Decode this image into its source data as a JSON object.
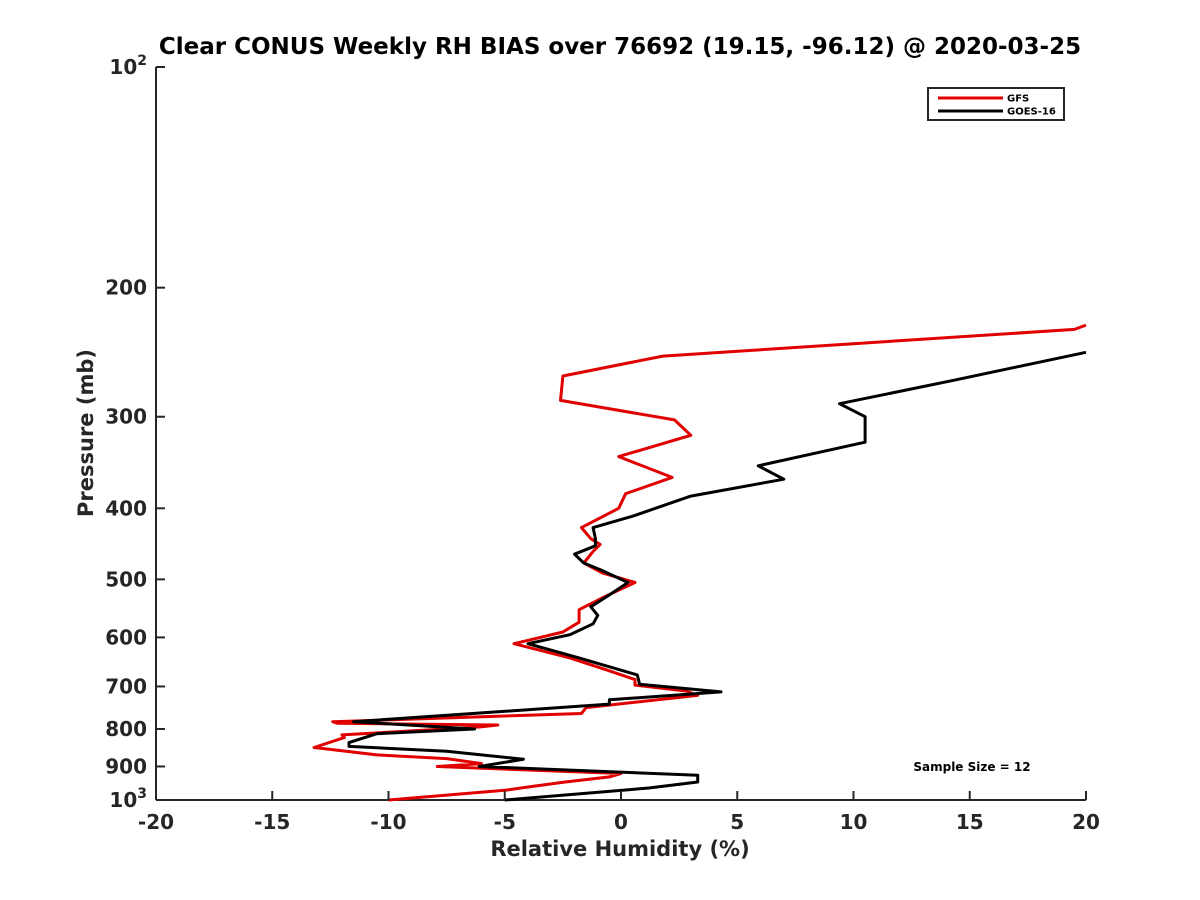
{
  "chart_data": {
    "type": "line",
    "title": "Clear CONUS Weekly RH BIAS over 76692 (19.15, -96.12) @ 2020-03-25",
    "xlabel": "Relative Humidity (%)",
    "ylabel": "Pressure (mb)",
    "xlim": [
      -20,
      20
    ],
    "ylim": [
      100,
      1000
    ],
    "yscale": "log",
    "yreversed": true,
    "grid": false,
    "legend_position": "top-right",
    "x_ticks": [
      -20,
      -15,
      -10,
      -5,
      0,
      5,
      10,
      15,
      20
    ],
    "x_tick_labels": [
      "-20",
      "-15",
      "-10",
      "-5",
      "0",
      "5",
      "10",
      "15",
      "20"
    ],
    "y_ticks": [
      100,
      200,
      300,
      400,
      500,
      600,
      700,
      800,
      900,
      1000
    ],
    "y_tick_labels": [
      {
        "base": "10",
        "sup": "2"
      },
      {
        "base": "200",
        "sup": ""
      },
      {
        "base": "300",
        "sup": ""
      },
      {
        "base": "400",
        "sup": ""
      },
      {
        "base": "500",
        "sup": ""
      },
      {
        "base": "600",
        "sup": ""
      },
      {
        "base": "700",
        "sup": ""
      },
      {
        "base": "800",
        "sup": ""
      },
      {
        "base": "900",
        "sup": ""
      },
      {
        "base": "10",
        "sup": "3"
      }
    ],
    "annotation": "Sample Size = 12",
    "series": [
      {
        "name": "GFS",
        "color": "#e00000",
        "points": [
          [
            20,
            225
          ],
          [
            19.5,
            228
          ],
          [
            1.8,
            248
          ],
          [
            -2.5,
            264
          ],
          [
            -2.6,
            285
          ],
          [
            2.3,
            303
          ],
          [
            3.0,
            318
          ],
          [
            -0.1,
            340
          ],
          [
            2.2,
            363
          ],
          [
            0.2,
            382
          ],
          [
            -0.1,
            400
          ],
          [
            -1.7,
            425
          ],
          [
            -1.3,
            440
          ],
          [
            -0.9,
            448
          ],
          [
            -1.2,
            458
          ],
          [
            -1.6,
            475
          ],
          [
            -0.8,
            490
          ],
          [
            0.6,
            505
          ],
          [
            -0.7,
            528
          ],
          [
            -1.8,
            550
          ],
          [
            -1.8,
            572
          ],
          [
            -2.5,
            590
          ],
          [
            -4.6,
            612
          ],
          [
            -2.2,
            640
          ],
          [
            -0.6,
            665
          ],
          [
            0.6,
            685
          ],
          [
            0.6,
            697
          ],
          [
            2.8,
            710
          ],
          [
            3.3,
            720
          ],
          [
            -1.5,
            748
          ],
          [
            -1.7,
            762
          ],
          [
            -12.4,
            782
          ],
          [
            -12.2,
            786
          ],
          [
            -5.3,
            790
          ],
          [
            -6.1,
            795
          ],
          [
            -12.0,
            815
          ],
          [
            -11.9,
            822
          ],
          [
            -13.2,
            848
          ],
          [
            -10.5,
            868
          ],
          [
            -7.5,
            878
          ],
          [
            -6.0,
            892
          ],
          [
            -7.9,
            900
          ],
          [
            0.0,
            920
          ],
          [
            -0.5,
            930
          ],
          [
            -2.4,
            945
          ],
          [
            -4.0,
            960
          ],
          [
            -5.0,
            970
          ],
          [
            -10.0,
            1000
          ]
        ]
      },
      {
        "name": "GOES-16",
        "color": "#000000",
        "points": [
          [
            20,
            245
          ],
          [
            14.2,
            268
          ],
          [
            9.4,
            288
          ],
          [
            10.5,
            300
          ],
          [
            10.5,
            325
          ],
          [
            5.9,
            350
          ],
          [
            7.0,
            365
          ],
          [
            3.0,
            385
          ],
          [
            0.5,
            410
          ],
          [
            -1.2,
            425
          ],
          [
            -1.1,
            440
          ],
          [
            -1.1,
            450
          ],
          [
            -2.0,
            462
          ],
          [
            -1.6,
            475
          ],
          [
            -0.9,
            485
          ],
          [
            0.3,
            505
          ],
          [
            -0.5,
            525
          ],
          [
            -1.3,
            545
          ],
          [
            -1.0,
            560
          ],
          [
            -1.2,
            575
          ],
          [
            -2.2,
            595
          ],
          [
            -4.0,
            612
          ],
          [
            -1.8,
            640
          ],
          [
            0.7,
            675
          ],
          [
            0.8,
            695
          ],
          [
            4.3,
            712
          ],
          [
            -0.5,
            730
          ],
          [
            -0.5,
            740
          ],
          [
            -11.5,
            782
          ],
          [
            -6.3,
            800
          ],
          [
            -10.5,
            812
          ],
          [
            -11.7,
            835
          ],
          [
            -11.7,
            845
          ],
          [
            -7.5,
            858
          ],
          [
            -4.2,
            880
          ],
          [
            -6.1,
            900
          ],
          [
            3.3,
            925
          ],
          [
            3.3,
            945
          ],
          [
            1.2,
            963
          ],
          [
            -5.0,
            1000
          ]
        ]
      }
    ]
  }
}
